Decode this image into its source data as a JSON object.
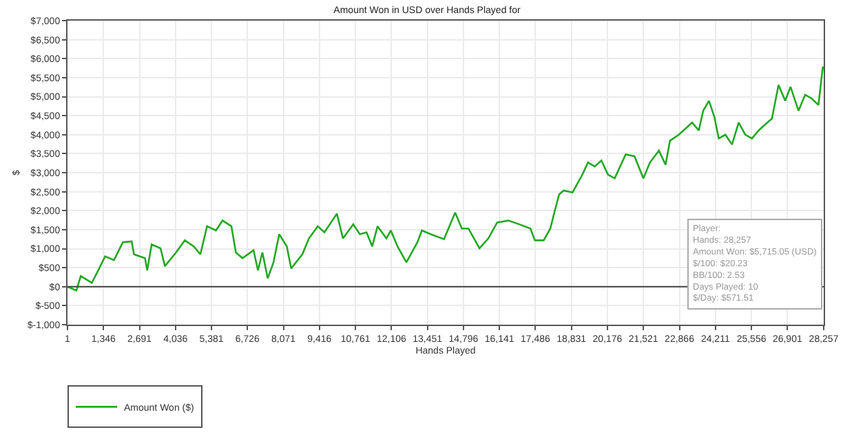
{
  "chart_data": {
    "type": "line",
    "title": "Amount Won in USD over Hands Played for",
    "xlabel": "Hands Played",
    "ylabel": "$",
    "series": [
      {
        "name": "Amount Won ($)",
        "color": "#22a822",
        "x": [
          1,
          333,
          497,
          910,
          1158,
          1407,
          1739,
          2070,
          2400,
          2484,
          2897,
          2980,
          3145,
          3477,
          3642,
          4057,
          4385,
          4718,
          4967,
          5215,
          5548,
          5795,
          6124,
          6293,
          6541,
          6953,
          7118,
          7285,
          7482,
          7698,
          7912,
          8195,
          8360,
          8775,
          9024,
          9352,
          9600,
          9848,
          10067,
          10295,
          10678,
          10926,
          11174,
          11388,
          11587,
          11918,
          12083,
          12332,
          12663,
          13076,
          13243,
          13574,
          14070,
          14487,
          14735,
          14983,
          15395,
          15727,
          16057,
          16473,
          16885,
          17297,
          17466,
          17794,
          18042,
          18210,
          18375,
          18540,
          18871,
          19204,
          19452,
          19700,
          19949,
          20197,
          20446,
          20858,
          21189,
          21519,
          21767,
          22100,
          22348,
          22513,
          22845,
          23093,
          23341,
          23589,
          23754,
          23972,
          24171,
          24335,
          24583,
          24831,
          25080,
          25328,
          25576,
          25825,
          26156,
          26322,
          26570,
          26819,
          27017,
          27315,
          27564,
          27812,
          28060,
          28226,
          28257
        ],
        "values": [
          0,
          -100,
          280,
          100,
          440,
          800,
          700,
          1170,
          1190,
          850,
          750,
          430,
          1110,
          1010,
          540,
          900,
          1220,
          1060,
          850,
          1590,
          1480,
          1740,
          1590,
          900,
          750,
          960,
          430,
          900,
          220,
          640,
          1380,
          1060,
          480,
          850,
          1270,
          1590,
          1430,
          1690,
          1920,
          1270,
          1640,
          1380,
          1430,
          1060,
          1590,
          1270,
          1480,
          1060,
          640,
          1170,
          1480,
          1380,
          1250,
          1950,
          1530,
          1530,
          1010,
          1270,
          1690,
          1740,
          1640,
          1530,
          1220,
          1220,
          1530,
          2000,
          2430,
          2530,
          2480,
          2900,
          3270,
          3160,
          3320,
          2950,
          2850,
          3480,
          3430,
          2850,
          3270,
          3580,
          3210,
          3840,
          4000,
          4160,
          4320,
          4110,
          4630,
          4890,
          4470,
          3900,
          4000,
          3740,
          4320,
          4000,
          3900,
          4110,
          4320,
          4420,
          5310,
          4890,
          5260,
          4630,
          5050,
          4950,
          4780,
          5790,
          5720
        ]
      }
    ],
    "xlim": [
      1,
      28257
    ],
    "xticks": [
      1,
      {
        "value": 1346,
        "label": "1,346"
      },
      {
        "value": 2691,
        "label": "2,691"
      },
      {
        "value": 4036,
        "label": "4,036"
      },
      {
        "value": 5381,
        "label": "5,381"
      },
      {
        "value": 6726,
        "label": "6,726"
      },
      {
        "value": 8071,
        "label": "8,071"
      },
      {
        "value": 9416,
        "label": "9,416"
      },
      {
        "value": 10761,
        "label": "10,761"
      },
      {
        "value": 12106,
        "label": "12,106"
      },
      {
        "value": 13451,
        "label": "13,451"
      },
      {
        "value": 14796,
        "label": "14,796"
      },
      {
        "value": 16141,
        "label": "16,141"
      },
      {
        "value": 17486,
        "label": "17,486"
      },
      {
        "value": 18831,
        "label": "18,831"
      },
      {
        "value": 20176,
        "label": "20,176"
      },
      {
        "value": 21521,
        "label": "21,521"
      },
      {
        "value": 22866,
        "label": "22,866"
      },
      {
        "value": 24211,
        "label": "24,211"
      },
      {
        "value": 25556,
        "label": "25,556"
      },
      {
        "value": 26901,
        "label": "26,901"
      },
      {
        "value": 28257,
        "label": "28,257"
      }
    ],
    "ylim": [
      -1000,
      7000
    ],
    "yticks": [
      {
        "value": -1000,
        "label": "$-1,000"
      },
      {
        "value": -500,
        "label": "$-500"
      },
      {
        "value": 0,
        "label": "$0"
      },
      {
        "value": 500,
        "label": "$500"
      },
      {
        "value": 1000,
        "label": "$1,000"
      },
      {
        "value": 1500,
        "label": "$1,500"
      },
      {
        "value": 2000,
        "label": "$2,000"
      },
      {
        "value": 2500,
        "label": "$2,500"
      },
      {
        "value": 3000,
        "label": "$3,000"
      },
      {
        "value": 3500,
        "label": "$3,500"
      },
      {
        "value": 4000,
        "label": "$4,000"
      },
      {
        "value": 4500,
        "label": "$4,500"
      },
      {
        "value": 5000,
        "label": "$5,000"
      },
      {
        "value": 5500,
        "label": "$5,500"
      },
      {
        "value": 6000,
        "label": "$6,000"
      },
      {
        "value": 6500,
        "label": "$6,500"
      },
      {
        "value": 7000,
        "label": "$7,000"
      }
    ],
    "ref_lines": [
      {
        "axis": "y",
        "value": 0,
        "color": "#404040"
      }
    ],
    "annotations": [
      "Player:\nHands: 28,257\nAmount Won: $5,715.05 (USD)\n$/100: $20.23\nBB/100: 2.53\nDays Played: 10\n$/Day: $571.51"
    ],
    "grid": true,
    "legend": "bottom left",
    "marker": "none",
    "line_style": "solid"
  }
}
